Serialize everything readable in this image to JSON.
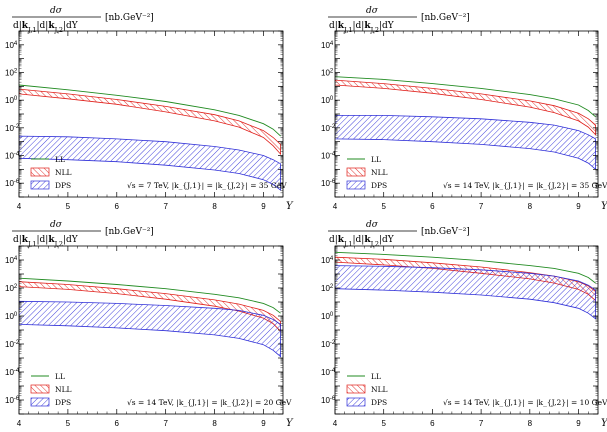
{
  "chart_data": [
    {
      "type": "area",
      "panel": "top-left",
      "ylabel_num": "dσ",
      "ylabel_den": "d|k_{J,1}|d|k_{J,2}|dY",
      "ylabel_unit": "[nb.GeV⁻²]",
      "xlabel": "Y",
      "xlim": [
        4,
        9.4
      ],
      "ylim_log10": [
        -7,
        5
      ],
      "x_ticks": [
        "4",
        "5",
        "6",
        "7",
        "8",
        "9"
      ],
      "y_ticks": [
        {
          "exp": -6,
          "label": "10-6"
        },
        {
          "exp": -4,
          "label": "10-4"
        },
        {
          "exp": -2,
          "label": "10-2"
        },
        {
          "exp": 0,
          "label": "100"
        },
        {
          "exp": 2,
          "label": "102"
        },
        {
          "exp": 4,
          "label": "104"
        }
      ],
      "annotation": "√s = 7 TeV, |k_{J,1}| = |k_{J,2}| = 35 GeV",
      "legend": [
        "LL",
        "NLL",
        "DPS"
      ],
      "legend_position": "bottom-left",
      "series": [
        {
          "name": "LL",
          "style": "line",
          "color": "#228b22",
          "x": [
            4.0,
            5.0,
            6.0,
            7.0,
            8.0,
            8.5,
            9.0,
            9.2,
            9.35
          ],
          "y_log10": [
            1.1,
            0.75,
            0.35,
            -0.1,
            -0.7,
            -1.1,
            -1.7,
            -2.1,
            -2.6
          ]
        },
        {
          "name": "NLL",
          "style": "band",
          "color": "#e0201b",
          "x": [
            4.0,
            5.0,
            6.0,
            7.0,
            8.0,
            8.5,
            9.0,
            9.2,
            9.35
          ],
          "y_log10_upper": [
            0.8,
            0.45,
            0.05,
            -0.45,
            -1.05,
            -1.5,
            -2.2,
            -2.7,
            -3.2
          ],
          "y_log10_lower": [
            0.45,
            0.1,
            -0.3,
            -0.85,
            -1.5,
            -1.95,
            -2.7,
            -3.3,
            -3.9
          ]
        },
        {
          "name": "DPS",
          "style": "band",
          "color": "#3030d8",
          "x": [
            4.0,
            5.0,
            6.0,
            7.0,
            8.0,
            8.5,
            9.0,
            9.2,
            9.35
          ],
          "y_log10_upper": [
            -2.6,
            -2.65,
            -2.8,
            -3.0,
            -3.35,
            -3.6,
            -4.0,
            -4.3,
            -4.6
          ],
          "y_log10_lower": [
            -4.2,
            -4.3,
            -4.45,
            -4.7,
            -5.05,
            -5.3,
            -5.75,
            -6.1,
            -6.5
          ]
        }
      ]
    },
    {
      "type": "area",
      "panel": "top-right",
      "ylabel_num": "dσ",
      "ylabel_den": "d|k_{J,1}|d|k_{J,2}|dY",
      "ylabel_unit": "[nb.GeV⁻²]",
      "xlabel": "Y",
      "xlim": [
        4,
        9.4
      ],
      "ylim_log10": [
        -7,
        5
      ],
      "x_ticks": [
        "4",
        "5",
        "6",
        "7",
        "8",
        "9"
      ],
      "y_ticks": [
        {
          "exp": -6,
          "label": "10-6"
        },
        {
          "exp": -4,
          "label": "10-4"
        },
        {
          "exp": -2,
          "label": "10-2"
        },
        {
          "exp": 0,
          "label": "100"
        },
        {
          "exp": 2,
          "label": "102"
        },
        {
          "exp": 4,
          "label": "104"
        }
      ],
      "annotation": "√s = 14 TeV, |k_{J,1}| = |k_{J,2}| = 35 GeV",
      "legend": [
        "LL",
        "NLL",
        "DPS"
      ],
      "legend_position": "bottom-left",
      "series": [
        {
          "name": "LL",
          "style": "line",
          "color": "#228b22",
          "x": [
            4.0,
            5.0,
            6.0,
            7.0,
            8.0,
            8.5,
            9.0,
            9.2,
            9.35
          ],
          "y_log10": [
            1.7,
            1.5,
            1.2,
            0.85,
            0.4,
            0.1,
            -0.35,
            -0.75,
            -1.2
          ]
        },
        {
          "name": "NLL",
          "style": "band",
          "color": "#e0201b",
          "x": [
            4.0,
            5.0,
            6.0,
            7.0,
            8.0,
            8.5,
            9.0,
            9.2,
            9.35
          ],
          "y_log10_upper": [
            1.45,
            1.2,
            0.85,
            0.45,
            -0.05,
            -0.4,
            -0.95,
            -1.35,
            -1.8
          ],
          "y_log10_lower": [
            1.1,
            0.85,
            0.5,
            0.05,
            -0.5,
            -0.9,
            -1.5,
            -1.95,
            -2.5
          ]
        },
        {
          "name": "DPS",
          "style": "band",
          "color": "#3030d8",
          "x": [
            4.0,
            5.0,
            6.0,
            7.0,
            8.0,
            8.5,
            9.0,
            9.2,
            9.35
          ],
          "y_log10_upper": [
            -1.1,
            -1.1,
            -1.2,
            -1.35,
            -1.6,
            -1.8,
            -2.2,
            -2.5,
            -2.8
          ],
          "y_log10_lower": [
            -2.8,
            -2.85,
            -3.0,
            -3.2,
            -3.5,
            -3.75,
            -4.2,
            -4.55,
            -5.0
          ]
        }
      ]
    },
    {
      "type": "area",
      "panel": "bottom-left",
      "ylabel_num": "dσ",
      "ylabel_den": "d|k_{J,1}|d|k_{J,2}|dY",
      "ylabel_unit": "[nb.GeV⁻²]",
      "xlabel": "Y",
      "xlim": [
        4,
        9.4
      ],
      "ylim_log10": [
        -7,
        5
      ],
      "x_ticks": [
        "4",
        "5",
        "6",
        "7",
        "8",
        "9"
      ],
      "y_ticks": [
        {
          "exp": -6,
          "label": "10-6"
        },
        {
          "exp": -4,
          "label": "10-4"
        },
        {
          "exp": -2,
          "label": "10-2"
        },
        {
          "exp": 0,
          "label": "100"
        },
        {
          "exp": 2,
          "label": "102"
        },
        {
          "exp": 4,
          "label": "104"
        }
      ],
      "annotation": "√s = 14 TeV, |k_{J,1}| = |k_{J,2}| = 20 GeV",
      "legend": [
        "LL",
        "NLL",
        "DPS"
      ],
      "legend_position": "bottom-left",
      "series": [
        {
          "name": "LL",
          "style": "line",
          "color": "#228b22",
          "x": [
            4.0,
            5.0,
            6.0,
            7.0,
            8.0,
            8.5,
            9.0,
            9.2,
            9.35
          ],
          "y_log10": [
            2.7,
            2.5,
            2.25,
            1.95,
            1.55,
            1.3,
            0.9,
            0.6,
            0.2
          ]
        },
        {
          "name": "NLL",
          "style": "band",
          "color": "#e0201b",
          "x": [
            4.0,
            5.0,
            6.0,
            7.0,
            8.0,
            8.5,
            9.0,
            9.2,
            9.35
          ],
          "y_log10_upper": [
            2.45,
            2.25,
            1.95,
            1.6,
            1.15,
            0.85,
            0.4,
            0.05,
            -0.4
          ],
          "y_log10_lower": [
            2.1,
            1.9,
            1.6,
            1.2,
            0.7,
            0.35,
            -0.15,
            -0.55,
            -1.1
          ]
        },
        {
          "name": "DPS",
          "style": "band",
          "color": "#3030d8",
          "x": [
            4.0,
            5.0,
            6.0,
            7.0,
            8.0,
            8.5,
            9.0,
            9.2,
            9.35
          ],
          "y_log10_upper": [
            1.05,
            1.0,
            0.9,
            0.75,
            0.55,
            0.4,
            0.05,
            -0.25,
            -0.6
          ],
          "y_log10_lower": [
            -0.6,
            -0.7,
            -0.85,
            -1.05,
            -1.35,
            -1.6,
            -2.05,
            -2.45,
            -2.9
          ]
        }
      ]
    },
    {
      "type": "area",
      "panel": "bottom-right",
      "ylabel_num": "dσ",
      "ylabel_den": "d|k_{J,1}|d|k_{J,2}|dY",
      "ylabel_unit": "[nb.GeV⁻²]",
      "xlabel": "Y",
      "xlim": [
        4,
        9.4
      ],
      "ylim_log10": [
        -7,
        5
      ],
      "x_ticks": [
        "4",
        "5",
        "6",
        "7",
        "8",
        "9"
      ],
      "y_ticks": [
        {
          "exp": -6,
          "label": "10-6"
        },
        {
          "exp": -4,
          "label": "10-4"
        },
        {
          "exp": -2,
          "label": "10-2"
        },
        {
          "exp": 0,
          "label": "100"
        },
        {
          "exp": 2,
          "label": "102"
        },
        {
          "exp": 4,
          "label": "104"
        }
      ],
      "annotation": "√s = 14 TeV, |k_{J,1}| = |k_{J,2}| = 10 GeV",
      "legend": [
        "LL",
        "NLL",
        "DPS"
      ],
      "legend_position": "bottom-left",
      "series": [
        {
          "name": "LL",
          "style": "line",
          "color": "#228b22",
          "x": [
            4.0,
            5.0,
            6.0,
            7.0,
            8.0,
            8.5,
            9.0,
            9.2,
            9.35
          ],
          "y_log10": [
            4.55,
            4.4,
            4.2,
            3.95,
            3.6,
            3.4,
            3.05,
            2.75,
            2.35
          ]
        },
        {
          "name": "NLL",
          "style": "band",
          "color": "#e0201b",
          "x": [
            4.0,
            5.0,
            6.0,
            7.0,
            8.0,
            8.5,
            9.0,
            9.2,
            9.35
          ],
          "y_log10_upper": [
            4.2,
            4.05,
            3.8,
            3.5,
            3.1,
            2.85,
            2.45,
            2.15,
            1.75
          ],
          "y_log10_lower": [
            3.85,
            3.65,
            3.4,
            3.05,
            2.65,
            2.35,
            1.9,
            1.55,
            1.1
          ]
        },
        {
          "name": "DPS",
          "style": "band",
          "color": "#3030d8",
          "x": [
            4.0,
            5.0,
            6.0,
            7.0,
            8.0,
            8.5,
            9.0,
            9.2,
            9.35
          ],
          "y_log10_upper": [
            3.6,
            3.55,
            3.45,
            3.3,
            3.05,
            2.85,
            2.5,
            2.2,
            1.85
          ],
          "y_log10_lower": [
            1.95,
            1.85,
            1.7,
            1.5,
            1.2,
            0.95,
            0.55,
            0.2,
            -0.2
          ]
        }
      ]
    }
  ]
}
